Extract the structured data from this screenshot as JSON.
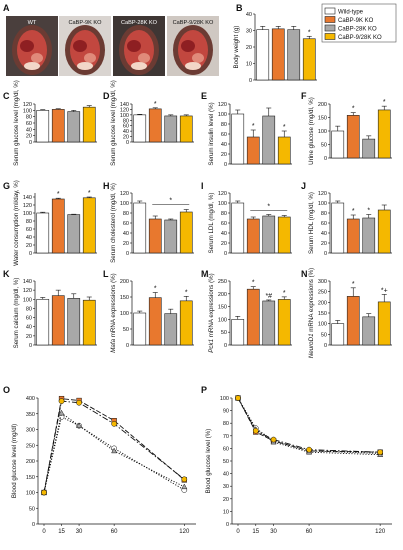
{
  "colors": {
    "wt": "#ffffff",
    "ko9": "#e8782e",
    "ko28": "#a8a8a8",
    "dko": "#f5b800",
    "stroke": "#222222"
  },
  "photos": {
    "panel_label": "A",
    "labels": [
      "WT",
      "CaBP-9K KO",
      "CaBP-28K KO",
      "CaBP-9/28K KO"
    ]
  },
  "legend": [
    "Wild-type",
    "CaBP-9K KO",
    "CaBP-28K KO",
    "CaBP-9/28K KO"
  ],
  "chart_data": [
    {
      "id": "B",
      "type": "bar",
      "ylabel": "Body weight (g)",
      "ylim": [
        0,
        40
      ],
      "yticks": [
        0,
        10,
        20,
        30,
        40
      ],
      "values": [
        30.5,
        31,
        30.5,
        25
      ],
      "errors": [
        2,
        1.5,
        2,
        1.5
      ],
      "marks": [
        "",
        "",
        "",
        "*"
      ]
    },
    {
      "id": "C",
      "type": "bar",
      "ylabel": "Serum glucose level (mg/dl, %)",
      "ylim": [
        0,
        120
      ],
      "yticks": [
        0,
        20,
        40,
        60,
        80,
        100,
        120
      ],
      "values": [
        100,
        103,
        96,
        110
      ],
      "errors": [
        2,
        2,
        4,
        5
      ],
      "marks": [
        "",
        "",
        "",
        ""
      ]
    },
    {
      "id": "D",
      "type": "bar",
      "ylabel": "Serum glucose level (mg/dl, %)",
      "ylim": [
        0,
        140
      ],
      "yticks": [
        0,
        20,
        40,
        60,
        80,
        100,
        120,
        140
      ],
      "values": [
        100,
        122,
        96,
        96
      ],
      "errors": [
        2,
        4,
        4,
        4
      ],
      "marks": [
        "",
        "*",
        "",
        ""
      ]
    },
    {
      "id": "E",
      "type": "bar",
      "ylabel": "Serum insulin level (%)",
      "ylim": [
        0,
        120
      ],
      "yticks": [
        0,
        20,
        40,
        60,
        80,
        100,
        120
      ],
      "values": [
        100,
        54,
        96,
        54
      ],
      "errors": [
        8,
        14,
        16,
        12
      ],
      "marks": [
        "",
        "*",
        "",
        "*"
      ]
    },
    {
      "id": "F",
      "type": "bar",
      "ylabel": "Urine glucose (mg/dl, %)",
      "ylim": [
        0,
        200
      ],
      "yticks": [
        0,
        50,
        100,
        150,
        200
      ],
      "values": [
        100,
        158,
        70,
        178
      ],
      "errors": [
        18,
        10,
        12,
        14
      ],
      "marks": [
        "",
        "*",
        "",
        "*"
      ]
    },
    {
      "id": "G",
      "type": "bar",
      "ylabel": "Water consumption (ml/day, %)",
      "ylim": [
        0,
        150
      ],
      "yticks": [
        0,
        20,
        40,
        60,
        80,
        100,
        120,
        140
      ],
      "values": [
        100,
        135,
        96,
        138
      ],
      "errors": [
        2,
        2,
        1,
        2
      ],
      "marks": [
        "",
        "*",
        "",
        "*"
      ]
    },
    {
      "id": "H",
      "type": "bar",
      "ylabel": "Serum cholesterol (mg/dl, %)",
      "ylim": [
        0,
        120
      ],
      "yticks": [
        0,
        20,
        40,
        60,
        80,
        100,
        120
      ],
      "values": [
        100,
        68,
        66,
        82
      ],
      "errors": [
        4,
        6,
        2,
        5
      ],
      "marks": [
        "",
        "",
        "",
        ""
      ],
      "bracket": [
        1,
        3
      ],
      "bracket_mark": "*"
    },
    {
      "id": "I",
      "type": "bar",
      "ylabel": "Serum LDL (mg/dl, %)",
      "ylim": [
        0,
        120
      ],
      "yticks": [
        0,
        20,
        40,
        60,
        80,
        100,
        120
      ],
      "values": [
        100,
        68,
        74,
        72
      ],
      "errors": [
        4,
        4,
        3,
        3
      ],
      "marks": [
        "",
        "",
        "",
        ""
      ],
      "bracket": [
        1,
        3
      ],
      "bracket_mark": "*"
    },
    {
      "id": "J",
      "type": "bar",
      "ylabel": "Serum HDL (mg/dl, %)",
      "ylim": [
        0,
        120
      ],
      "yticks": [
        0,
        20,
        40,
        60,
        80,
        100,
        120
      ],
      "values": [
        100,
        68,
        70,
        86
      ],
      "errors": [
        4,
        8,
        7,
        10
      ],
      "marks": [
        "",
        "*",
        "*",
        ""
      ]
    },
    {
      "id": "K",
      "type": "bar",
      "ylabel": "Serum calcium (mg/dl, %)",
      "ylim": [
        0,
        140
      ],
      "yticks": [
        0,
        20,
        40,
        60,
        80,
        100,
        120,
        140
      ],
      "values": [
        100,
        108,
        102,
        98
      ],
      "errors": [
        4,
        12,
        10,
        7
      ],
      "marks": [
        "",
        "",
        "",
        ""
      ]
    },
    {
      "id": "L",
      "type": "bar",
      "ylabel": "Mafa mRNA expressions (%)",
      "ylim": [
        0,
        200
      ],
      "yticks": [
        0,
        50,
        100,
        150,
        200
      ],
      "values": [
        100,
        148,
        98,
        138
      ],
      "errors": [
        6,
        16,
        14,
        14
      ],
      "marks": [
        "",
        "*",
        "",
        "*"
      ]
    },
    {
      "id": "M",
      "type": "bar",
      "ylabel": "Pck1 mRNA expressions (%)",
      "ylim": [
        0,
        250
      ],
      "yticks": [
        0,
        50,
        100,
        150,
        200,
        250
      ],
      "values": [
        100,
        218,
        172,
        178
      ],
      "errors": [
        12,
        10,
        4,
        10
      ],
      "marks": [
        "",
        "*",
        "*#",
        "*"
      ]
    },
    {
      "id": "N",
      "type": "bar",
      "ylabel": "NeuroD1 mRNA expressions (%)",
      "ylim": [
        0,
        300
      ],
      "yticks": [
        0,
        50,
        100,
        150,
        200,
        250,
        300
      ],
      "values": [
        100,
        228,
        132,
        202
      ],
      "errors": [
        15,
        40,
        15,
        35
      ],
      "marks": [
        "",
        "*",
        "",
        "*+"
      ]
    },
    {
      "id": "O",
      "type": "line",
      "ylabel": "Blood glucose level (mg/dl)",
      "xlabel": "",
      "ylim": [
        0,
        400
      ],
      "yticks": [
        0,
        50,
        100,
        150,
        200,
        250,
        300,
        350,
        400
      ],
      "x": [
        0,
        15,
        30,
        60,
        120
      ],
      "xticks": [
        0,
        15,
        30,
        60,
        120
      ],
      "series": [
        {
          "values": [
            100,
            340,
            312,
            240,
            108
          ]
        },
        {
          "values": [
            100,
            398,
            392,
            328,
            140
          ]
        },
        {
          "values": [
            100,
            352,
            312,
            232,
            118
          ]
        },
        {
          "values": [
            100,
            390,
            385,
            318,
            142
          ]
        }
      ]
    },
    {
      "id": "P",
      "type": "line",
      "ylabel": "Blood glucose level (%)",
      "xlabel": "",
      "ylim": [
        0,
        100
      ],
      "yticks": [
        0,
        10,
        20,
        30,
        40,
        50,
        60,
        70,
        80,
        90,
        100
      ],
      "x": [
        0,
        15,
        30,
        60,
        120
      ],
      "xticks": [
        0,
        15,
        30,
        60,
        120
      ],
      "series": [
        {
          "values": [
            100,
            76,
            66,
            58,
            56
          ]
        },
        {
          "values": [
            100,
            73,
            66,
            58,
            57
          ]
        },
        {
          "values": [
            100,
            75,
            65,
            57,
            55
          ]
        },
        {
          "values": [
            100,
            74,
            67,
            59,
            57
          ]
        }
      ]
    }
  ]
}
